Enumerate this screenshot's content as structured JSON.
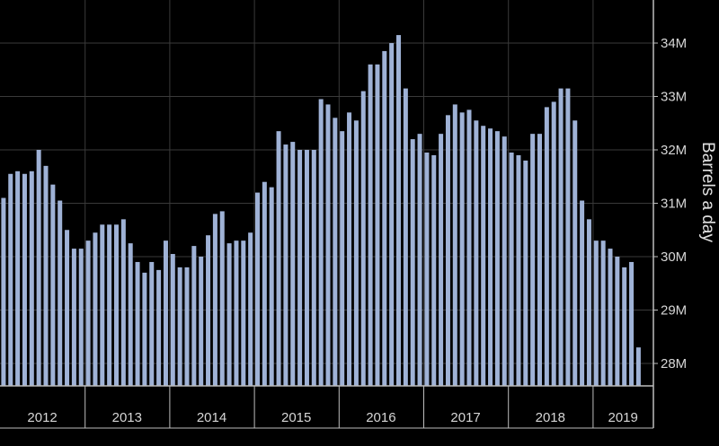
{
  "colors": {
    "background": "#000000",
    "bar": "#9fb2d6",
    "grid": "#3a3a3a",
    "axis": "#bdbdbd",
    "text": "#d6d6d6"
  },
  "chart_data": {
    "type": "bar",
    "title": "",
    "xlabel": "",
    "ylabel": "Barrels a day",
    "y_axis_position": "right",
    "grid": true,
    "ylim": [
      27.6,
      34.7
    ],
    "y_ticks": [
      {
        "value": 28,
        "label": "28M"
      },
      {
        "value": 29,
        "label": "29M"
      },
      {
        "value": 30,
        "label": "30M"
      },
      {
        "value": 31,
        "label": "31M"
      },
      {
        "value": 32,
        "label": "32M"
      },
      {
        "value": 33,
        "label": "33M"
      },
      {
        "value": 34,
        "label": "34M"
      }
    ],
    "years": [
      "2012",
      "2013",
      "2014",
      "2015",
      "2016",
      "2017",
      "2018",
      "2019"
    ],
    "months_per_year": 12,
    "series": [
      {
        "unit": "M barrels a day",
        "values": [
          31.1,
          31.55,
          31.6,
          31.55,
          31.6,
          32.0,
          31.7,
          31.35,
          31.05,
          30.5,
          30.15,
          30.15,
          30.3,
          30.45,
          30.6,
          30.6,
          30.6,
          30.7,
          30.25,
          29.9,
          29.7,
          29.9,
          29.75,
          30.3,
          30.05,
          29.8,
          29.8,
          30.2,
          30.0,
          30.4,
          30.8,
          30.85,
          30.25,
          30.3,
          30.3,
          30.45,
          31.2,
          31.4,
          31.3,
          32.35,
          32.1,
          32.15,
          32.0,
          32.0,
          32.0,
          32.95,
          32.85,
          32.6,
          32.35,
          32.7,
          32.55,
          33.1,
          33.6,
          33.6,
          33.85,
          34.0,
          34.15,
          33.15,
          32.2,
          32.3,
          31.95,
          31.9,
          32.3,
          32.65,
          32.85,
          32.7,
          32.75,
          32.55,
          32.45,
          32.4,
          32.35,
          32.25,
          31.95,
          31.9,
          31.8,
          32.3,
          32.3,
          32.8,
          32.9,
          33.15,
          33.15,
          32.55,
          31.05,
          30.7,
          30.3,
          30.3,
          30.15,
          30.0,
          29.8,
          29.9,
          28.3
        ]
      }
    ]
  }
}
